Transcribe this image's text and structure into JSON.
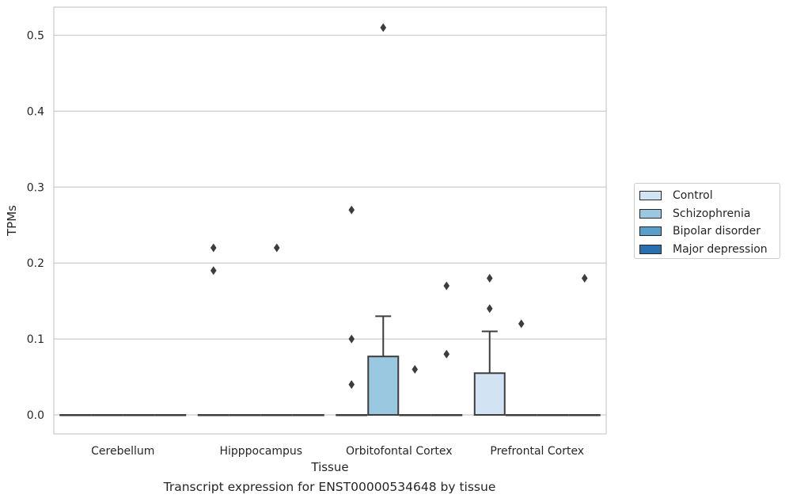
{
  "chart_data": {
    "type": "box",
    "title": "",
    "caption": "Transcript expression for ENST00000534648 by tissue",
    "xlabel": "Tissue",
    "ylabel": "TPMs",
    "ylim": [
      -0.025,
      0.537
    ],
    "yticks": [
      0.0,
      0.1,
      0.2,
      0.3,
      0.4,
      0.5
    ],
    "ytick_labels": [
      "0.0",
      "0.1",
      "0.2",
      "0.3",
      "0.4",
      "0.5"
    ],
    "grid": "horizontal",
    "legend_position": "right",
    "categories": [
      "Cerebellum",
      "Hipppocampus",
      "Orbitofontal Cortex",
      "Prefrontal Cortex"
    ],
    "series": [
      {
        "name": "Control",
        "color": "#d2e3f3",
        "boxes": [
          {
            "q1": 0,
            "median": 0,
            "q3": 0,
            "whisker_low": 0,
            "whisker_high": 0,
            "outliers": []
          },
          {
            "q1": 0,
            "median": 0,
            "q3": 0,
            "whisker_low": 0,
            "whisker_high": 0,
            "outliers": [
              0.19,
              0.22
            ]
          },
          {
            "q1": 0,
            "median": 0,
            "q3": 0,
            "whisker_low": 0,
            "whisker_high": 0,
            "outliers": [
              0.04,
              0.1,
              0.27
            ]
          },
          {
            "q1": 0,
            "median": 0,
            "q3": 0.055,
            "whisker_low": 0,
            "whisker_high": 0.11,
            "outliers": [
              0.14,
              0.18
            ]
          }
        ]
      },
      {
        "name": "Schizophrenia",
        "color": "#9ac8e0",
        "boxes": [
          {
            "q1": 0,
            "median": 0,
            "q3": 0,
            "whisker_low": 0,
            "whisker_high": 0,
            "outliers": []
          },
          {
            "q1": 0,
            "median": 0,
            "q3": 0,
            "whisker_low": 0,
            "whisker_high": 0,
            "outliers": []
          },
          {
            "q1": 0,
            "median": 0,
            "q3": 0.077,
            "whisker_low": 0,
            "whisker_high": 0.13,
            "outliers": [
              0.51
            ]
          },
          {
            "q1": 0,
            "median": 0,
            "q3": 0,
            "whisker_low": 0,
            "whisker_high": 0,
            "outliers": [
              0.12
            ]
          }
        ]
      },
      {
        "name": "Bipolar disorder",
        "color": "#5a9fcb",
        "boxes": [
          {
            "q1": 0,
            "median": 0,
            "q3": 0,
            "whisker_low": 0,
            "whisker_high": 0,
            "outliers": []
          },
          {
            "q1": 0,
            "median": 0,
            "q3": 0,
            "whisker_low": 0,
            "whisker_high": 0,
            "outliers": [
              0.22
            ]
          },
          {
            "q1": 0,
            "median": 0,
            "q3": 0,
            "whisker_low": 0,
            "whisker_high": 0,
            "outliers": [
              0.06
            ]
          },
          {
            "q1": 0,
            "median": 0,
            "q3": 0,
            "whisker_low": 0,
            "whisker_high": 0,
            "outliers": []
          }
        ]
      },
      {
        "name": "Major depression",
        "color": "#2a6fb0",
        "boxes": [
          {
            "q1": 0,
            "median": 0,
            "q3": 0,
            "whisker_low": 0,
            "whisker_high": 0,
            "outliers": []
          },
          {
            "q1": 0,
            "median": 0,
            "q3": 0,
            "whisker_low": 0,
            "whisker_high": 0,
            "outliers": []
          },
          {
            "q1": 0,
            "median": 0,
            "q3": 0,
            "whisker_low": 0,
            "whisker_high": 0,
            "outliers": [
              0.08,
              0.17
            ]
          },
          {
            "q1": 0,
            "median": 0,
            "q3": 0,
            "whisker_low": 0,
            "whisker_high": 0,
            "outliers": [
              0.18
            ]
          }
        ]
      }
    ]
  }
}
